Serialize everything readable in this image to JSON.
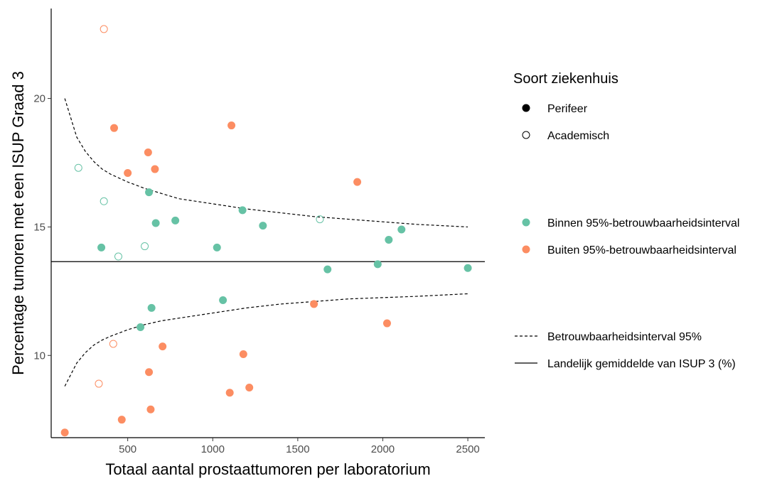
{
  "chart_data": {
    "type": "scatter",
    "title": "",
    "xlabel": "Totaal aantal prostaattumoren per laboratorium",
    "ylabel": "Percentage tumoren met een ISUP Graad 3",
    "xlim": [
      50,
      2600
    ],
    "ylim": [
      6.8,
      23.5
    ],
    "xticks": [
      500,
      1000,
      1500,
      2000,
      2500
    ],
    "yticks": [
      10,
      15,
      20
    ],
    "grid": false,
    "colors": {
      "binnen": "#66c2a5",
      "buiten": "#fc8d62",
      "line": "#000000"
    },
    "national_average": 13.65,
    "ci_x": [
      130,
      200,
      250,
      300,
      350,
      400,
      500,
      600,
      700,
      800,
      1000,
      1200,
      1400,
      1600,
      1800,
      2000,
      2200,
      2500
    ],
    "ci_upper": [
      20.0,
      18.5,
      17.95,
      17.55,
      17.25,
      17.05,
      16.75,
      16.5,
      16.3,
      16.1,
      15.9,
      15.7,
      15.55,
      15.4,
      15.3,
      15.2,
      15.1,
      15.0
    ],
    "ci_lower": [
      8.8,
      9.7,
      10.1,
      10.4,
      10.6,
      10.75,
      11.0,
      11.2,
      11.35,
      11.45,
      11.65,
      11.85,
      12.0,
      12.1,
      12.2,
      12.25,
      12.3,
      12.4
    ],
    "points": [
      {
        "x": 360,
        "y": 22.7,
        "group": "buiten",
        "type": "academisch"
      },
      {
        "x": 420,
        "y": 18.85,
        "group": "buiten",
        "type": "perifeer"
      },
      {
        "x": 1110,
        "y": 18.95,
        "group": "buiten",
        "type": "perifeer"
      },
      {
        "x": 620,
        "y": 17.9,
        "group": "buiten",
        "type": "perifeer"
      },
      {
        "x": 210,
        "y": 17.3,
        "group": "binnen",
        "type": "academisch"
      },
      {
        "x": 500,
        "y": 17.1,
        "group": "buiten",
        "type": "perifeer"
      },
      {
        "x": 660,
        "y": 17.25,
        "group": "buiten",
        "type": "perifeer"
      },
      {
        "x": 1850,
        "y": 16.75,
        "group": "buiten",
        "type": "perifeer"
      },
      {
        "x": 625,
        "y": 16.35,
        "group": "binnen",
        "type": "perifeer"
      },
      {
        "x": 360,
        "y": 16.0,
        "group": "binnen",
        "type": "academisch"
      },
      {
        "x": 1175,
        "y": 15.65,
        "group": "binnen",
        "type": "perifeer"
      },
      {
        "x": 1630,
        "y": 15.3,
        "group": "binnen",
        "type": "academisch"
      },
      {
        "x": 780,
        "y": 15.25,
        "group": "binnen",
        "type": "perifeer"
      },
      {
        "x": 665,
        "y": 15.15,
        "group": "binnen",
        "type": "perifeer"
      },
      {
        "x": 1295,
        "y": 15.05,
        "group": "binnen",
        "type": "perifeer"
      },
      {
        "x": 2110,
        "y": 14.9,
        "group": "binnen",
        "type": "perifeer"
      },
      {
        "x": 2035,
        "y": 14.5,
        "group": "binnen",
        "type": "perifeer"
      },
      {
        "x": 345,
        "y": 14.2,
        "group": "binnen",
        "type": "perifeer"
      },
      {
        "x": 600,
        "y": 14.25,
        "group": "binnen",
        "type": "academisch"
      },
      {
        "x": 1025,
        "y": 14.2,
        "group": "binnen",
        "type": "perifeer"
      },
      {
        "x": 445,
        "y": 13.85,
        "group": "binnen",
        "type": "academisch"
      },
      {
        "x": 1970,
        "y": 13.55,
        "group": "binnen",
        "type": "perifeer"
      },
      {
        "x": 2500,
        "y": 13.4,
        "group": "binnen",
        "type": "perifeer"
      },
      {
        "x": 1675,
        "y": 13.35,
        "group": "binnen",
        "type": "perifeer"
      },
      {
        "x": 1060,
        "y": 12.15,
        "group": "binnen",
        "type": "perifeer"
      },
      {
        "x": 1595,
        "y": 12.0,
        "group": "buiten",
        "type": "perifeer"
      },
      {
        "x": 640,
        "y": 11.85,
        "group": "binnen",
        "type": "perifeer"
      },
      {
        "x": 575,
        "y": 11.1,
        "group": "binnen",
        "type": "perifeer"
      },
      {
        "x": 2025,
        "y": 11.25,
        "group": "buiten",
        "type": "perifeer"
      },
      {
        "x": 415,
        "y": 10.45,
        "group": "buiten",
        "type": "academisch"
      },
      {
        "x": 705,
        "y": 10.35,
        "group": "buiten",
        "type": "perifeer"
      },
      {
        "x": 1180,
        "y": 10.05,
        "group": "buiten",
        "type": "perifeer"
      },
      {
        "x": 625,
        "y": 9.35,
        "group": "buiten",
        "type": "perifeer"
      },
      {
        "x": 330,
        "y": 8.9,
        "group": "buiten",
        "type": "academisch"
      },
      {
        "x": 1215,
        "y": 8.75,
        "group": "buiten",
        "type": "perifeer"
      },
      {
        "x": 1100,
        "y": 8.55,
        "group": "buiten",
        "type": "perifeer"
      },
      {
        "x": 635,
        "y": 7.9,
        "group": "buiten",
        "type": "perifeer"
      },
      {
        "x": 465,
        "y": 7.5,
        "group": "buiten",
        "type": "perifeer"
      },
      {
        "x": 130,
        "y": 7.0,
        "group": "buiten",
        "type": "perifeer"
      }
    ]
  },
  "legend": {
    "title": "Soort ziekenhuis",
    "perifeer": "Perifeer",
    "academisch": "Academisch",
    "binnen": "Binnen 95%-betrouwbaarheidsinterval",
    "buiten": "Buiten 95%-betrouwbaarheidsinterval",
    "ci": "Betrouwbaarheidsinterval 95%",
    "average": "Landelijk gemiddelde van ISUP 3 (%)"
  }
}
